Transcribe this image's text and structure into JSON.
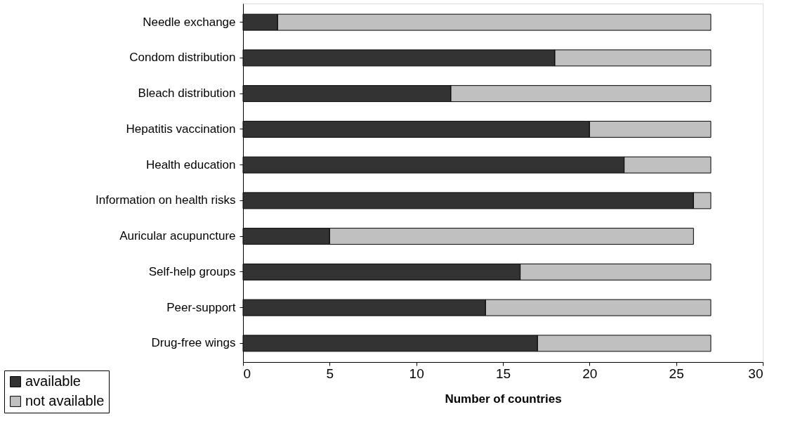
{
  "chart_data": {
    "type": "bar",
    "orientation": "horizontal",
    "stacked": true,
    "xlabel": "Number of countries",
    "categories": [
      "Needle exchange",
      "Condom distribution",
      "Bleach distribution",
      "Hepatitis vaccination",
      "Health education",
      "Information on health risks",
      "Auricular acupuncture",
      "Self-help groups",
      "Peer-support",
      "Drug-free wings"
    ],
    "series": [
      {
        "name": "available",
        "color": "#333333",
        "values": [
          2,
          18,
          12,
          20,
          22,
          26,
          5,
          16,
          14,
          17
        ]
      },
      {
        "name": "not available",
        "color": "#c0c0c0",
        "values": [
          25,
          9,
          15,
          7,
          5,
          1,
          21,
          11,
          13,
          10
        ]
      }
    ],
    "xlim": [
      0,
      30
    ],
    "xticks": [
      0,
      5,
      10,
      15,
      20,
      25,
      30
    ],
    "grid": false,
    "legend": "bottom left"
  }
}
